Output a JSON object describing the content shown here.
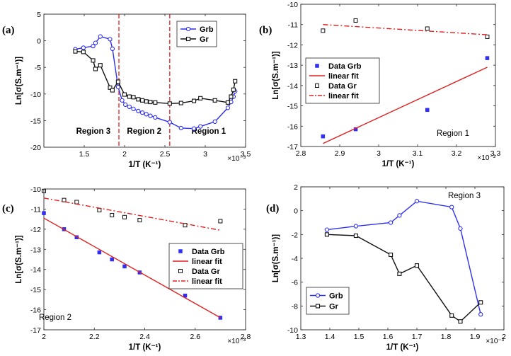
{
  "chart_data": [
    {
      "panel": "(a)",
      "type": "line",
      "xlabel": "1/T (K⁻¹)",
      "ylabel": "Ln[σ(S.m⁻¹)]",
      "exponent_label": "×10⁻³",
      "xlim": [
        1.0,
        3.5
      ],
      "ylim": [
        -20,
        5
      ],
      "xticks": [
        1.5,
        2,
        2.5,
        3,
        3.5
      ],
      "xtick_labels": [
        "1.5",
        "2",
        "2.5",
        "3",
        "3.5"
      ],
      "yticks": [
        -20,
        -15,
        -10,
        -5,
        0,
        5
      ],
      "ytick_labels": [
        "-20",
        "-15",
        "-10",
        "-5",
        "0",
        "5"
      ],
      "legend_position": "top-right",
      "colors": {
        "Grb": "#2f2ff2",
        "Gr": "#111111",
        "divider": "#e02020"
      },
      "vlines": [
        1.93,
        2.56
      ],
      "region_labels": [
        {
          "text": "Region 3",
          "x": 1.4,
          "y": -17.5
        },
        {
          "text": "Region 2",
          "x": 2.03,
          "y": -17.5
        },
        {
          "text": "Region 1",
          "x": 2.83,
          "y": -17.5
        }
      ],
      "series": [
        {
          "name": "Grb",
          "marker": "circle",
          "x": [
            1.39,
            1.49,
            1.61,
            1.64,
            1.7,
            1.82,
            1.85,
            1.92,
            1.97,
            2.01,
            2.06,
            2.11,
            2.17,
            2.22,
            2.27,
            2.32,
            2.38,
            2.56,
            2.7,
            2.86,
            2.94,
            3.12,
            3.28,
            3.32,
            3.35,
            3.37
          ],
          "y": [
            -1.6,
            -1.3,
            -1.0,
            -0.4,
            0.8,
            0.3,
            -1.5,
            -8.7,
            -11.2,
            -12.0,
            -12.4,
            -12.8,
            -13.2,
            -13.5,
            -13.8,
            -14.1,
            -14.4,
            -15.3,
            -16.4,
            -16.5,
            -16.1,
            -15.2,
            -12.6,
            -11.5,
            -10.5,
            -9.5
          ]
        },
        {
          "name": "Gr",
          "marker": "square",
          "x": [
            1.39,
            1.49,
            1.61,
            1.64,
            1.7,
            1.82,
            1.85,
            1.92,
            2.0,
            2.06,
            2.11,
            2.17,
            2.22,
            2.27,
            2.32,
            2.38,
            2.56,
            2.7,
            2.86,
            2.94,
            3.12,
            3.28,
            3.32,
            3.35,
            3.37
          ],
          "y": [
            -2.0,
            -2.1,
            -3.7,
            -5.3,
            -4.6,
            -8.8,
            -9.3,
            -7.7,
            -10.1,
            -10.5,
            -10.6,
            -11.0,
            -11.2,
            -11.4,
            -11.5,
            -11.6,
            -11.8,
            -11.7,
            -11.3,
            -10.8,
            -11.2,
            -11.6,
            -10.5,
            -9.2,
            -7.6
          ]
        }
      ]
    },
    {
      "panel": "(b)",
      "type": "scatter",
      "xlabel": "1/T (K⁻¹)",
      "ylabel": "Ln[σ(S.m⁻¹)]",
      "exponent_label": "×10⁻³",
      "xlim": [
        2.8,
        3.3
      ],
      "ylim": [
        -17,
        -10
      ],
      "xticks": [
        2.8,
        2.9,
        3.0,
        3.1,
        3.2,
        3.3
      ],
      "xtick_labels": [
        "2.8",
        "2.9",
        "3",
        "3.1",
        "3.2",
        "3.3"
      ],
      "yticks": [
        -17,
        -16,
        -15,
        -14,
        -13,
        -12,
        -11,
        -10
      ],
      "ytick_labels": [
        "-17",
        "-16",
        "-15",
        "-14",
        "-13",
        "-12",
        "-11",
        "-10"
      ],
      "legend_position": "top-left",
      "annotation": "Region 1",
      "series": [
        {
          "name": "Data Grb",
          "kind": "scatter",
          "marker": "filled-square",
          "color": "#2f2ff2",
          "x": [
            2.857,
            2.941,
            3.125,
            3.279
          ],
          "y": [
            -16.5,
            -16.15,
            -15.2,
            -12.65
          ]
        },
        {
          "name": "linear fit",
          "kind": "line",
          "dash": "solid",
          "color": "#e02020",
          "x": [
            2.857,
            3.279
          ],
          "y": [
            -16.85,
            -13.1
          ]
        },
        {
          "name": "Data Gr",
          "kind": "scatter",
          "marker": "open-square",
          "color": "#111111",
          "x": [
            2.857,
            2.941,
            3.125,
            3.279
          ],
          "y": [
            -11.3,
            -10.8,
            -11.2,
            -11.6
          ]
        },
        {
          "name": "linear fit",
          "kind": "line",
          "dash": "dashdot",
          "color": "#e02020",
          "x": [
            2.857,
            3.279
          ],
          "y": [
            -11.0,
            -11.5
          ]
        }
      ]
    },
    {
      "panel": "(c)",
      "type": "scatter",
      "xlabel": "1/T (K⁻¹)",
      "ylabel": "Ln[σ(S.m⁻¹)]",
      "exponent_label": "×10⁻³",
      "xlim": [
        2.0,
        2.8
      ],
      "ylim": [
        -17,
        -10
      ],
      "xticks": [
        2.0,
        2.2,
        2.4,
        2.6,
        2.8
      ],
      "xtick_labels": [
        "2",
        "2.2",
        "2.4",
        "2.6",
        "2.8"
      ],
      "yticks": [
        -17,
        -16,
        -15,
        -14,
        -13,
        -12,
        -11,
        -10
      ],
      "ytick_labels": [
        "-17",
        "-16",
        "-15",
        "-14",
        "-13",
        "-12",
        "-11",
        "-10"
      ],
      "legend_position": "right",
      "annotation": "Region 2",
      "series": [
        {
          "name": "Data Grb",
          "kind": "scatter",
          "marker": "filled-square",
          "color": "#2f2ff2",
          "x": [
            2.0,
            2.08,
            2.13,
            2.22,
            2.27,
            2.32,
            2.38,
            2.56,
            2.7
          ],
          "y": [
            -11.2,
            -12.0,
            -12.4,
            -13.15,
            -13.5,
            -13.85,
            -14.15,
            -15.3,
            -16.4
          ]
        },
        {
          "name": "linear fit",
          "kind": "line",
          "dash": "solid",
          "color": "#e02020",
          "x": [
            2.0,
            2.7
          ],
          "y": [
            -11.45,
            -16.4
          ]
        },
        {
          "name": "Data Gr",
          "kind": "scatter",
          "marker": "open-square",
          "color": "#111111",
          "x": [
            2.0,
            2.08,
            2.13,
            2.22,
            2.27,
            2.32,
            2.38,
            2.56,
            2.7
          ],
          "y": [
            -10.1,
            -10.55,
            -10.65,
            -11.05,
            -11.3,
            -11.4,
            -11.55,
            -11.8,
            -11.6
          ]
        },
        {
          "name": "linear fit",
          "kind": "line",
          "dash": "dashdot",
          "color": "#e02020",
          "x": [
            2.0,
            2.7
          ],
          "y": [
            -10.45,
            -12.05
          ]
        }
      ]
    },
    {
      "panel": "(d)",
      "type": "line",
      "xlabel": "1/T (K⁻¹)",
      "ylabel": "Ln[σ(S.m⁻¹)]",
      "exponent_label": "×10⁻³",
      "xlim": [
        1.3,
        2.0
      ],
      "ylim": [
        -10,
        2
      ],
      "xticks": [
        1.3,
        1.4,
        1.5,
        1.6,
        1.7,
        1.8,
        1.9,
        2.0
      ],
      "xtick_labels": [
        "1.3",
        "1.4",
        "1.5",
        "1.6",
        "1.7",
        "1.8",
        "1.9",
        "2"
      ],
      "yticks": [
        -10,
        -8,
        -6,
        -4,
        -2,
        0,
        2
      ],
      "ytick_labels": [
        "-10",
        "-8",
        "-6",
        "-4",
        "-2",
        "0",
        "2"
      ],
      "legend_position": "bottom-left",
      "annotation": "Region 3",
      "series": [
        {
          "name": "Grb",
          "kind": "line",
          "marker": "circle",
          "color": "#2f2ff2",
          "x": [
            1.39,
            1.49,
            1.61,
            1.64,
            1.7,
            1.82,
            1.85,
            1.92
          ],
          "y": [
            -1.6,
            -1.3,
            -1.0,
            -0.4,
            0.8,
            0.3,
            -1.5,
            -8.7
          ]
        },
        {
          "name": "Gr",
          "kind": "line",
          "marker": "square",
          "color": "#111111",
          "x": [
            1.39,
            1.49,
            1.61,
            1.64,
            1.7,
            1.82,
            1.85,
            1.92
          ],
          "y": [
            -2.0,
            -2.1,
            -3.7,
            -5.3,
            -4.6,
            -8.8,
            -9.3,
            -7.7
          ]
        }
      ]
    }
  ]
}
